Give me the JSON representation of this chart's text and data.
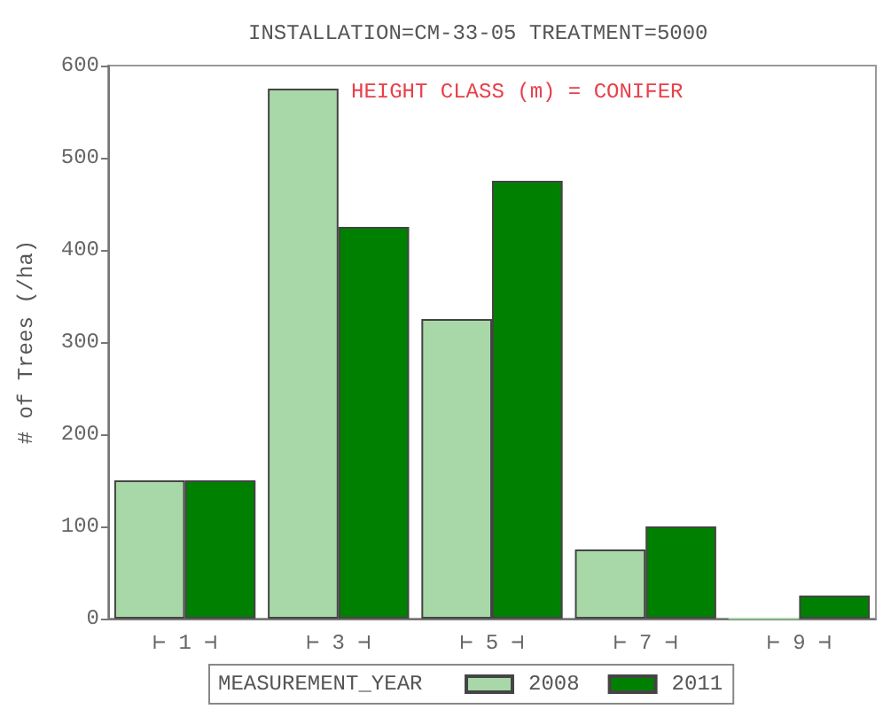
{
  "chart_data": {
    "type": "bar",
    "title": "INSTALLATION=CM-33-05 TREATMENT=5000",
    "ylabel": "# of Trees (/ha)",
    "legend_title": "MEASUREMENT_YEAR",
    "annotations": [
      "HEIGHT CLASS (m) = CONIFER"
    ],
    "categories": [
      "⊢ 1 ⊣",
      "⊢ 3 ⊣",
      "⊢ 5 ⊣",
      "⊢ 7 ⊣",
      "⊢ 9 ⊣"
    ],
    "series": [
      {
        "name": "2008",
        "color": "#a8d8a8",
        "values": [
          150,
          575,
          325,
          75,
          0
        ]
      },
      {
        "name": "2011",
        "color": "#008000",
        "values": [
          150,
          425,
          475,
          100,
          25
        ]
      }
    ],
    "ylim": [
      0,
      600
    ],
    "yticks": [
      0,
      100,
      200,
      300,
      400,
      500,
      600
    ],
    "grid": false,
    "legend": "bottom"
  }
}
